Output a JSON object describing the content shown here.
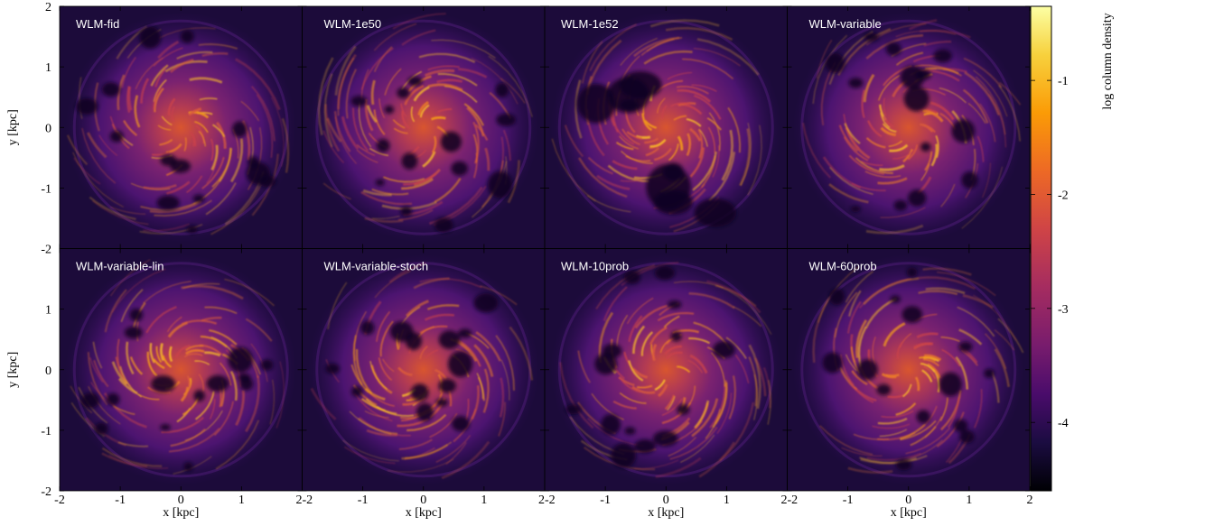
{
  "chart_data": {
    "type": "heatmap",
    "layout": "2x4 grid of panels, shared colorbar on right",
    "colormap": "inferno",
    "panels": [
      {
        "title": "WLM-fid"
      },
      {
        "title": "WLM-1e50"
      },
      {
        "title": "WLM-1e52"
      },
      {
        "title": "WLM-variable"
      },
      {
        "title": "WLM-variable-lin"
      },
      {
        "title": "WLM-variable-stoch"
      },
      {
        "title": "WLM-10prob"
      },
      {
        "title": "WLM-60prob"
      }
    ],
    "xlabel": "x [kpc]",
    "ylabel": "y [kpc]",
    "xlim": [
      -2,
      2
    ],
    "ylim": [
      -2,
      2
    ],
    "xticks": [
      "-2",
      "-1",
      "0",
      "1",
      "2"
    ],
    "yticks": [
      "-2",
      "-1",
      "0",
      "1",
      "2"
    ],
    "colorbar": {
      "label": "log column density",
      "range": [
        -4.6,
        -0.35
      ],
      "ticks": [
        "-1",
        "-2",
        "-3",
        "-4"
      ],
      "tick_values": [
        -1,
        -2,
        -3,
        -4
      ]
    }
  }
}
